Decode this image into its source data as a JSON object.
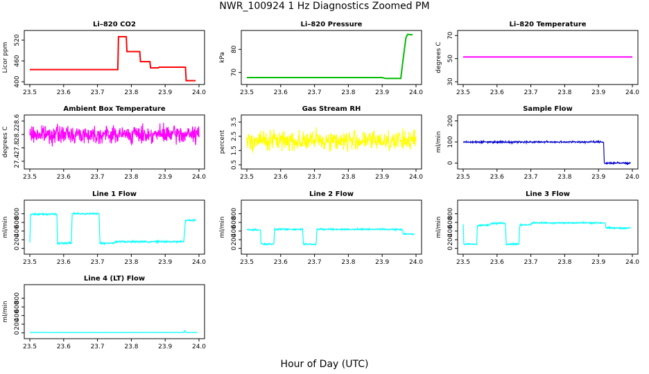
{
  "page": {
    "title": "NWR_100924  1 Hz Diagnostics Zoomed PM",
    "xlabel": "Hour of Day (UTC)"
  },
  "chart_data": [
    {
      "type": "line",
      "title": "Li–820 CO2",
      "ylabel": "Licor ppm",
      "color": "#ff0000",
      "xlim": [
        23.5,
        24.0
      ],
      "ylim": [
        400,
        540
      ],
      "yticks": [
        400,
        460,
        520
      ],
      "xticks": [
        23.5,
        23.6,
        23.7,
        23.8,
        23.9,
        24.0
      ],
      "series": [
        {
          "x": [
            23.5,
            23.76,
            23.762,
            23.785,
            23.787,
            23.825,
            23.827,
            23.855,
            23.857,
            23.88,
            23.882,
            23.96,
            23.962,
            23.99
          ],
          "values": [
            435,
            435,
            530,
            530,
            487,
            487,
            458,
            458,
            440,
            440,
            442,
            442,
            403,
            403
          ]
        }
      ]
    },
    {
      "type": "line",
      "title": "Li–820 Pressure",
      "ylabel": "kPa",
      "color": "#00bb00",
      "xlim": [
        23.5,
        24.0
      ],
      "ylim": [
        66,
        87
      ],
      "yticks": [
        70,
        80
      ],
      "xticks": [
        23.5,
        23.6,
        23.7,
        23.8,
        23.9,
        24.0
      ],
      "series": [
        {
          "x": [
            23.5,
            23.9,
            23.91,
            23.955,
            23.962,
            23.97,
            23.975,
            23.99
          ],
          "values": [
            67.8,
            67.8,
            67.4,
            67.4,
            76,
            85,
            86.5,
            86.3
          ]
        }
      ]
    },
    {
      "type": "line",
      "title": "Li–820 Temperature",
      "ylabel": "degrees C",
      "color": "#ff00ff",
      "xlim": [
        23.5,
        24.0
      ],
      "ylim": [
        30,
        72
      ],
      "yticks": [
        30,
        50,
        70
      ],
      "xticks": [
        23.5,
        23.6,
        23.7,
        23.8,
        23.9,
        24.0
      ],
      "series": [
        {
          "x": [
            23.5,
            24.0
          ],
          "values": [
            51.5,
            51.5
          ]
        }
      ]
    },
    {
      "type": "line",
      "title": "Ambient Box Temperature",
      "ylabel": "degrees C",
      "color": "#ff00ff",
      "xlim": [
        23.5,
        24.0
      ],
      "ylim": [
        27.25,
        28.7
      ],
      "yticks": [
        27.4,
        27.8,
        28.2,
        28.6
      ],
      "xticks": [
        23.5,
        23.6,
        23.7,
        23.8,
        23.9,
        24.0
      ],
      "series": [
        {
          "x": [
            23.5,
            24.0
          ],
          "values": [
            28.2,
            28.2
          ],
          "noise": 0.18
        }
      ]
    },
    {
      "type": "line",
      "title": "Gas Stream RH",
      "ylabel": "percent",
      "color": "#ffff00",
      "xlim": [
        23.5,
        24.0
      ],
      "ylim": [
        0.4,
        3.8
      ],
      "yticks": [
        0.5,
        1.5,
        2.5,
        3.5
      ],
      "xticks": [
        23.5,
        23.6,
        23.7,
        23.8,
        23.9,
        24.0
      ],
      "series": [
        {
          "x": [
            23.5,
            24.0
          ],
          "values": [
            2.2,
            2.2
          ],
          "noise": 0.5
        }
      ]
    },
    {
      "type": "line",
      "title": "Sample Flow",
      "ylabel": "ml/min",
      "color": "#0000cc",
      "xlim": [
        23.5,
        24.0
      ],
      "ylim": [
        -15,
        215
      ],
      "yticks": [
        0,
        100,
        200
      ],
      "xticks": [
        23.5,
        23.6,
        23.7,
        23.8,
        23.9,
        24.0
      ],
      "series": [
        {
          "x": [
            23.5,
            23.915,
            23.917,
            23.995
          ],
          "values": [
            100,
            100,
            0,
            0
          ],
          "noise": 3
        }
      ]
    },
    {
      "type": "line",
      "title": "Line 1 Flow",
      "ylabel": "ml/min",
      "color": "#00ffff",
      "xlim": [
        23.5,
        24.0
      ],
      "ylim": [
        -70,
        1050
      ],
      "yticks": [
        0,
        200,
        400,
        600,
        800
      ],
      "xticks": [
        23.5,
        23.6,
        23.7,
        23.8,
        23.9,
        24.0
      ],
      "series": [
        {
          "x": [
            23.5,
            23.502,
            23.58,
            23.582,
            23.623,
            23.625,
            23.705,
            23.707,
            23.75,
            23.752,
            23.955,
            23.96,
            23.99
          ],
          "values": [
            120,
            790,
            790,
            120,
            120,
            800,
            800,
            120,
            120,
            155,
            155,
            650,
            650
          ],
          "noise": 14
        }
      ]
    },
    {
      "type": "line",
      "title": "Line 2 Flow",
      "ylabel": "ml/min",
      "color": "#00ffff",
      "xlim": [
        23.5,
        24.0
      ],
      "ylim": [
        -70,
        1050
      ],
      "yticks": [
        0,
        200,
        400,
        600,
        800
      ],
      "xticks": [
        23.5,
        23.6,
        23.7,
        23.8,
        23.9,
        24.0
      ],
      "series": [
        {
          "x": [
            23.5,
            23.54,
            23.542,
            23.58,
            23.582,
            23.665,
            23.667,
            23.705,
            23.707,
            23.96,
            23.962,
            23.995
          ],
          "values": [
            430,
            430,
            100,
            100,
            440,
            440,
            100,
            100,
            440,
            440,
            330,
            330
          ],
          "noise": 12
        }
      ]
    },
    {
      "type": "line",
      "title": "Line 3 Flow",
      "ylabel": "ml/min",
      "color": "#00ffff",
      "xlim": [
        23.5,
        24.0
      ],
      "ylim": [
        -70,
        1050
      ],
      "yticks": [
        0,
        200,
        400,
        600,
        800
      ],
      "xticks": [
        23.5,
        23.6,
        23.7,
        23.8,
        23.9,
        24.0
      ],
      "series": [
        {
          "x": [
            23.5,
            23.502,
            23.54,
            23.542,
            23.58,
            23.582,
            23.625,
            23.627,
            23.665,
            23.667,
            23.7,
            23.702,
            23.92,
            23.922,
            23.995
          ],
          "values": [
            560,
            100,
            100,
            530,
            540,
            580,
            580,
            100,
            100,
            545,
            545,
            590,
            590,
            470,
            470
          ],
          "noise": 12
        }
      ]
    },
    {
      "type": "line",
      "title": "Line 4 (LT) Flow",
      "ylabel": "ml/min",
      "color": "#00ffff",
      "xlim": [
        23.5,
        24.0
      ],
      "ylim": [
        -70,
        1050
      ],
      "yticks": [
        0,
        200,
        400,
        600,
        800
      ],
      "xticks": [
        23.5,
        23.6,
        23.7,
        23.8,
        23.9,
        24.0
      ],
      "series": [
        {
          "x": [
            23.5,
            23.955,
            23.958,
            23.961,
            23.995
          ],
          "values": [
            10,
            10,
            60,
            10,
            10
          ],
          "noise": 2
        }
      ]
    }
  ]
}
